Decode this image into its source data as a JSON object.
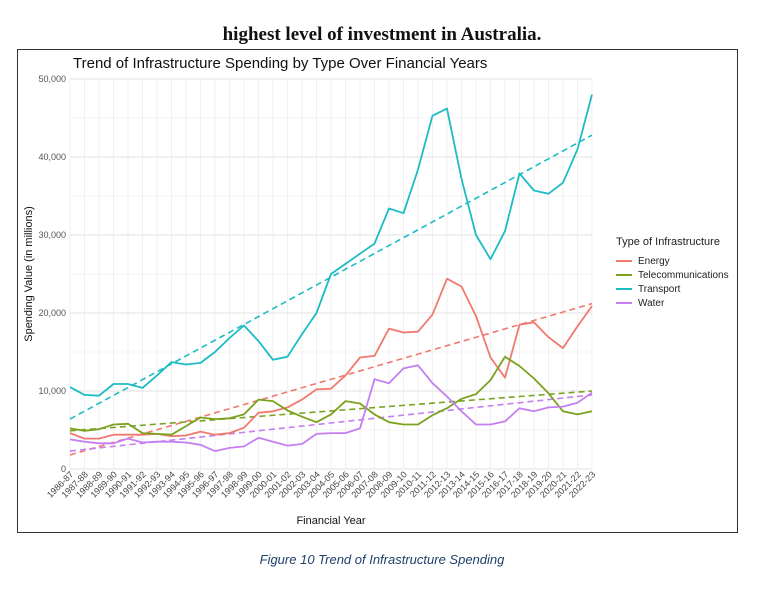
{
  "heading": "highest level of investment in Australia.",
  "caption": "Figure 10 Trend of Infrastructure Spending",
  "chart_data": {
    "type": "line",
    "title": "Trend of Infrastructure Spending by Type Over Financial Years",
    "xlabel": "Financial Year",
    "ylabel": "Spending Value (in millions)",
    "ylim": [
      0,
      50000
    ],
    "yticks": [
      0,
      10000,
      20000,
      30000,
      40000,
      50000
    ],
    "ytick_labels": [
      "0",
      "10,000",
      "20,000",
      "30,000",
      "40,000",
      "50,000"
    ],
    "grid": true,
    "legend_title": "Type of Infrastructure",
    "legend_position": "right",
    "categories": [
      "1986-87",
      "1987-88",
      "1988-89",
      "1989-90",
      "1990-91",
      "1991-92",
      "1992-93",
      "1993-94",
      "1994-95",
      "1995-96",
      "1996-97",
      "1997-98",
      "1998-99",
      "1999-00",
      "2000-01",
      "2001-02",
      "2002-03",
      "2003-04",
      "2004-05",
      "2005-06",
      "2006-07",
      "2007-08",
      "2008-09",
      "2009-10",
      "2010-11",
      "2011-12",
      "2012-13",
      "2013-14",
      "2014-15",
      "2015-16",
      "2016-17",
      "2017-18",
      "2018-19",
      "2019-20",
      "2020-21",
      "2021-22",
      "2022-23"
    ],
    "series": [
      {
        "name": "Energy",
        "color": "#f07a70",
        "values": [
          4600,
          3900,
          3900,
          4400,
          4400,
          4400,
          4500,
          4200,
          4300,
          4800,
          4400,
          4600,
          5300,
          7200,
          7400,
          7900,
          8900,
          10200,
          10300,
          12000,
          14300,
          14500,
          18000,
          17500,
          17600,
          19800,
          24400,
          23400,
          19600,
          14300,
          11700,
          18500,
          18800,
          16900,
          15500,
          18300,
          20900
        ],
        "trend": [
          1800,
          21200
        ]
      },
      {
        "name": "Telecommunications",
        "color": "#7aa21e",
        "values": [
          5200,
          4900,
          5100,
          5700,
          5800,
          4600,
          4500,
          4400,
          5500,
          6600,
          6400,
          6500,
          7000,
          8900,
          8700,
          7500,
          6700,
          6000,
          7000,
          8700,
          8400,
          7000,
          6000,
          5700,
          5700,
          6900,
          7800,
          9000,
          9600,
          11400,
          14400,
          13200,
          11600,
          9700,
          7400,
          7000,
          7400
        ],
        "trend": [
          4900,
          10000
        ]
      },
      {
        "name": "Transport",
        "color": "#1cbcc4",
        "values": [
          10500,
          9500,
          9400,
          10900,
          10900,
          10400,
          12000,
          13700,
          13400,
          13600,
          15000,
          16800,
          18400,
          16400,
          14000,
          14400,
          17300,
          20000,
          25000,
          26300,
          27600,
          28900,
          33400,
          32800,
          38400,
          45300,
          46200,
          37200,
          30000,
          26900,
          30500,
          37900,
          35700,
          35300,
          36700,
          41000,
          48000
        ],
        "trend": [
          6400,
          42800
        ]
      },
      {
        "name": "Water",
        "color": "#c57ff0",
        "values": [
          3800,
          3500,
          3300,
          3300,
          3900,
          3400,
          3500,
          3500,
          3400,
          3100,
          2300,
          2700,
          2900,
          4000,
          3500,
          3000,
          3200,
          4500,
          4600,
          4600,
          5200,
          11500,
          11000,
          12900,
          13300,
          11000,
          9300,
          7400,
          5700,
          5700,
          6100,
          7800,
          7400,
          7900,
          8000,
          8500,
          9800
        ],
        "trend": [
          2300,
          9500
        ]
      }
    ]
  }
}
